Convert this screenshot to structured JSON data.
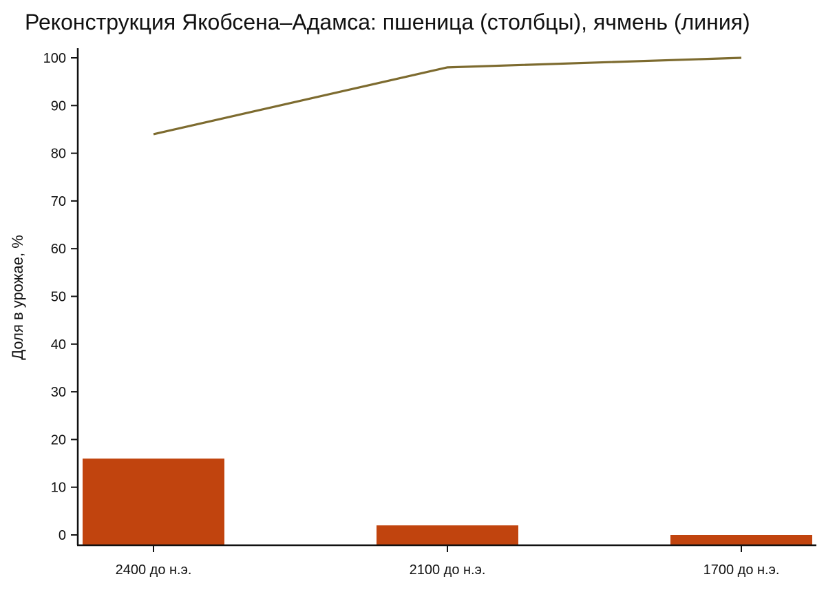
{
  "chart_data": {
    "type": "bar",
    "title": "Реконструкция Якобсена–Адамса: пшеница (столбцы), ячмень (линия)",
    "ylabel": "Доля в урожае, %",
    "xlabel": "",
    "categories": [
      "2400 до н.э.",
      "2100 до н.э.",
      "1700 до н.э."
    ],
    "ylim": [
      0,
      100
    ],
    "yticks": [
      0,
      10,
      20,
      30,
      40,
      50,
      60,
      70,
      80,
      90,
      100
    ],
    "grid": false,
    "series": [
      {
        "type": "bar",
        "values": [
          16,
          2,
          0
        ],
        "color": "#c1440e"
      },
      {
        "type": "line",
        "values": [
          84,
          98,
          100
        ],
        "color": "#7d6b2f"
      }
    ]
  }
}
